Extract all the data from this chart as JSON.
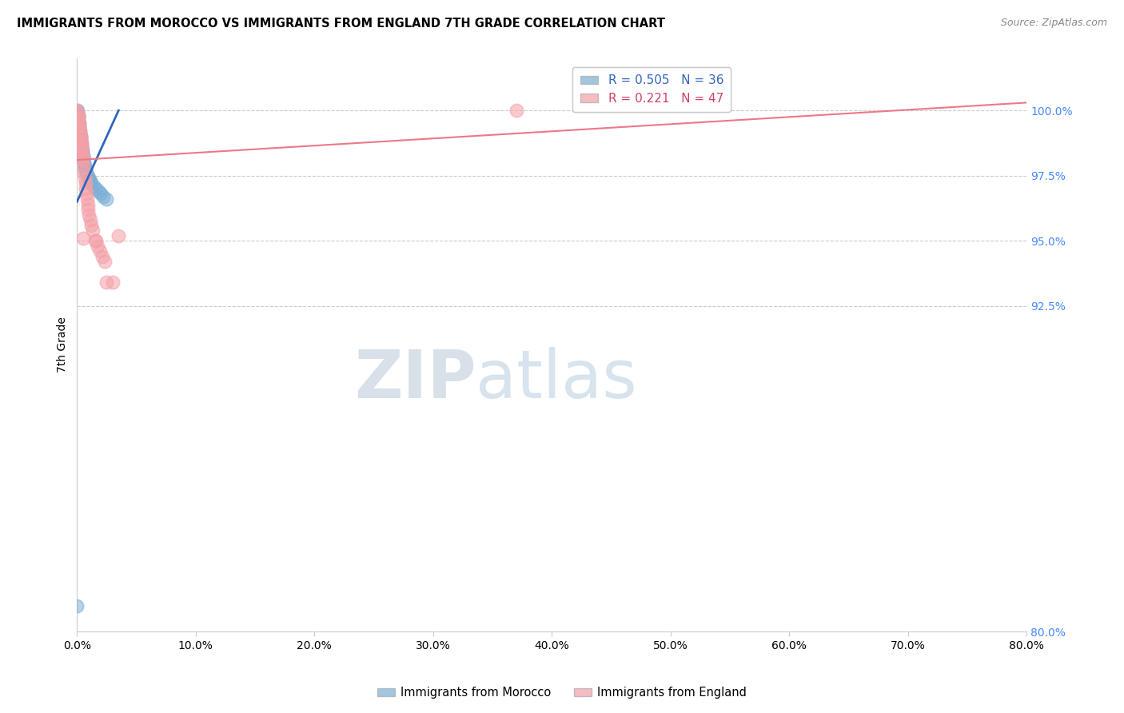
{
  "title": "IMMIGRANTS FROM MOROCCO VS IMMIGRANTS FROM ENGLAND 7TH GRADE CORRELATION CHART",
  "source": "Source: ZipAtlas.com",
  "ylabel": "7th Grade",
  "y_right_ticks": [
    80.0,
    92.5,
    95.0,
    97.5,
    100.0
  ],
  "x_lim": [
    0.0,
    80.0
  ],
  "y_lim": [
    80.0,
    102.0
  ],
  "morocco_R": 0.505,
  "morocco_N": 36,
  "england_R": 0.221,
  "england_N": 47,
  "morocco_color": "#7BAFD4",
  "england_color": "#F4A0A8",
  "morocco_line_color": "#3366BB",
  "england_line_color": "#EE7788",
  "morocco_line_x0": 0.0,
  "morocco_line_y0": 96.5,
  "morocco_line_x1": 3.5,
  "morocco_line_y1": 100.0,
  "england_line_x0": 0.0,
  "england_line_y0": 98.1,
  "england_line_x1": 80.0,
  "england_line_y1": 100.3,
  "morocco_x": [
    0.05,
    0.08,
    0.1,
    0.12,
    0.15,
    0.18,
    0.2,
    0.22,
    0.25,
    0.28,
    0.3,
    0.32,
    0.35,
    0.38,
    0.42,
    0.45,
    0.5,
    0.55,
    0.6,
    0.65,
    0.68,
    0.75,
    0.8,
    0.9,
    1.0,
    1.1,
    1.2,
    1.4,
    1.6,
    1.8,
    2.0,
    2.2,
    2.5,
    0.05,
    0.1,
    0.0
  ],
  "morocco_y": [
    100.0,
    99.8,
    99.7,
    99.6,
    99.5,
    99.4,
    99.3,
    99.2,
    99.1,
    99.0,
    98.8,
    99.0,
    98.7,
    98.6,
    98.5,
    98.4,
    98.3,
    98.15,
    98.0,
    97.9,
    97.8,
    97.7,
    97.6,
    97.5,
    97.4,
    97.3,
    97.2,
    97.1,
    97.0,
    96.9,
    96.8,
    96.7,
    96.6,
    99.9,
    99.8,
    81.0
  ],
  "england_x": [
    0.0,
    0.05,
    0.08,
    0.1,
    0.12,
    0.15,
    0.18,
    0.2,
    0.22,
    0.25,
    0.28,
    0.3,
    0.32,
    0.35,
    0.38,
    0.4,
    0.42,
    0.45,
    0.48,
    0.5,
    0.55,
    0.6,
    0.65,
    0.7,
    0.75,
    0.8,
    0.85,
    0.9,
    0.95,
    1.0,
    1.1,
    1.2,
    1.3,
    1.5,
    1.7,
    1.9,
    2.1,
    2.3,
    3.0,
    37.0,
    0.15,
    0.25,
    0.35,
    0.5,
    1.6,
    2.5,
    3.5
  ],
  "england_y": [
    100.0,
    99.9,
    99.8,
    99.7,
    99.6,
    99.5,
    99.4,
    99.3,
    99.2,
    99.1,
    99.0,
    98.9,
    98.8,
    98.7,
    98.6,
    98.5,
    98.4,
    98.3,
    98.2,
    98.1,
    97.8,
    97.6,
    97.4,
    97.2,
    97.0,
    96.8,
    96.6,
    96.4,
    96.2,
    96.0,
    95.8,
    95.6,
    95.4,
    95.0,
    94.8,
    94.6,
    94.4,
    94.2,
    93.4,
    100.0,
    99.4,
    99.1,
    98.8,
    95.1,
    95.0,
    93.4,
    95.2
  ]
}
